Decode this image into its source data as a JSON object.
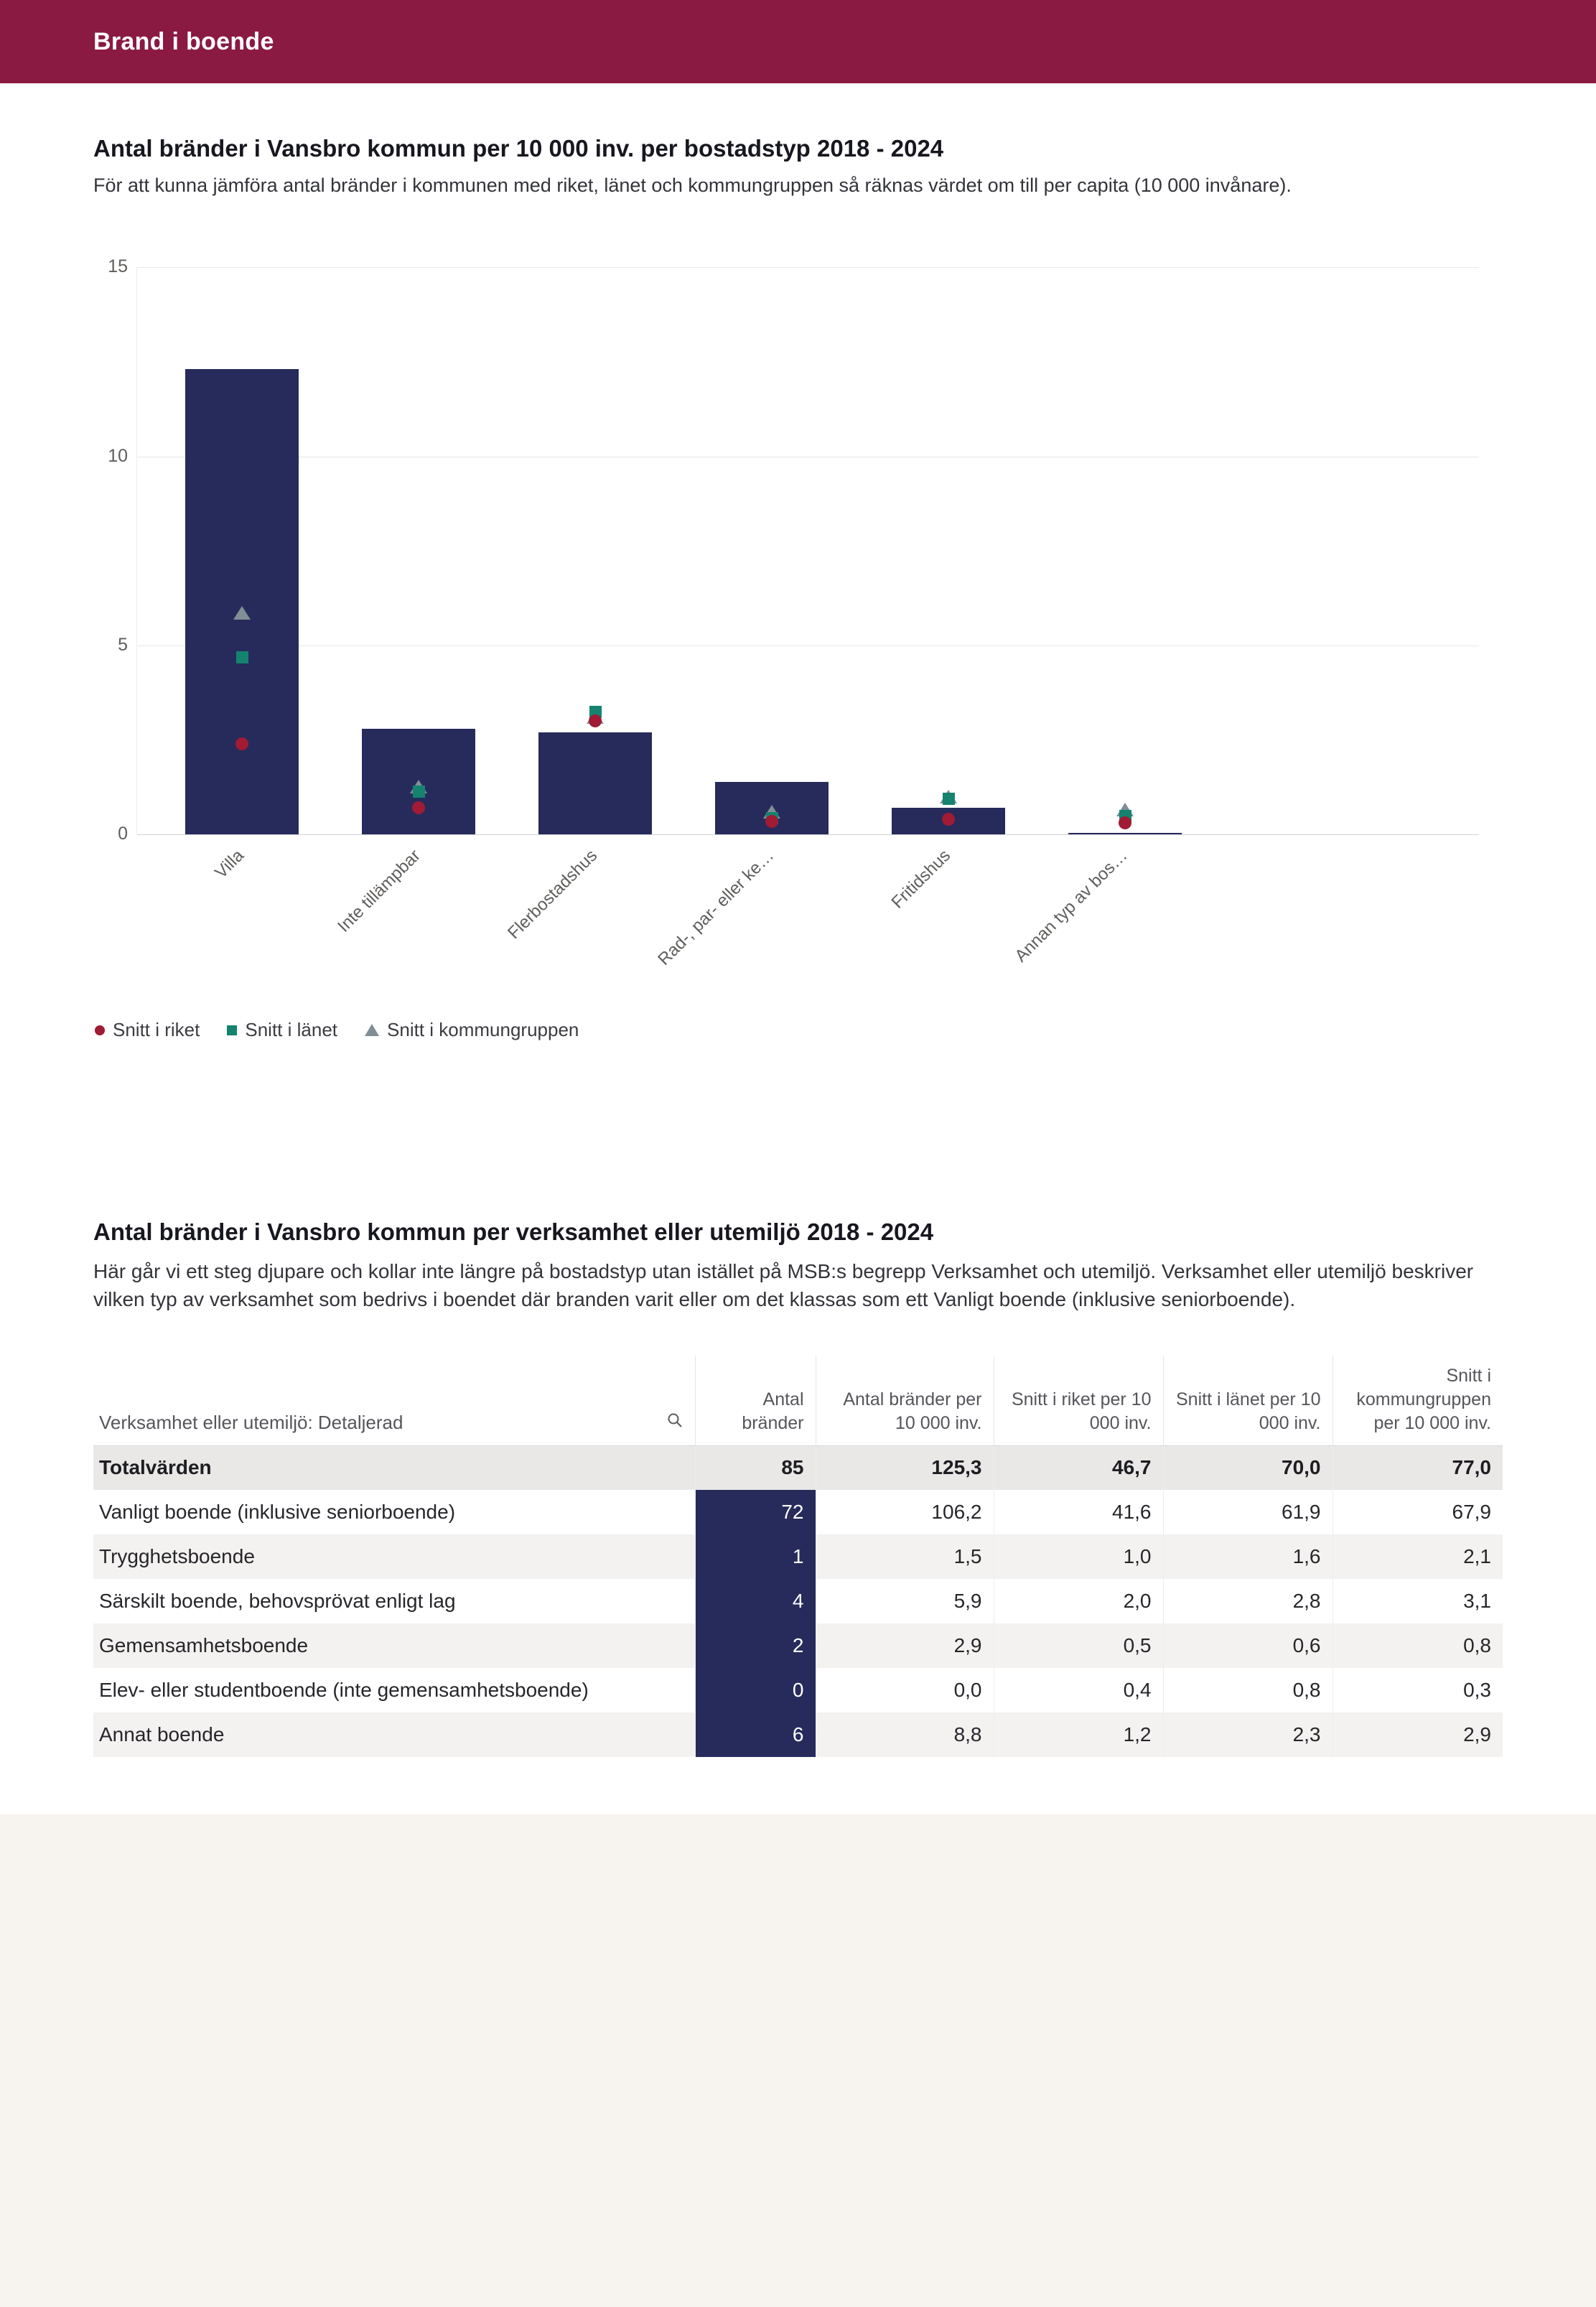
{
  "header": {
    "title": "Brand i boende",
    "bg": "#8a1a42"
  },
  "section1": {
    "title": "Antal bränder i Vansbro kommun per 10 000 inv. per bostadstyp 2018 - 2024",
    "subtitle": "För att kunna jämföra antal bränder i kommunen med riket, länet och kommungruppen så räknas värdet om till per capita (10 000 invånare)."
  },
  "chart_data": {
    "type": "bar",
    "title": "Antal bränder i Vansbro kommun per 10 000 inv. per bostadstyp 2018 - 2024",
    "categories": [
      "Villa",
      "Inte tillämpbar",
      "Flerbostadshus",
      "Rad-, par- eller ke…",
      "Fritidshus",
      "Annan typ av bos…"
    ],
    "bar_series": {
      "name": "Vansbro kommun",
      "values": [
        12.3,
        2.8,
        2.7,
        1.4,
        0.7,
        0.05
      ]
    },
    "marker_series": [
      {
        "name": "Snitt i riket",
        "shape": "circle",
        "color": "#a01b33",
        "values": [
          2.4,
          0.7,
          3.0,
          0.35,
          0.4,
          0.3
        ]
      },
      {
        "name": "Snitt i länet",
        "shape": "square",
        "color": "#15836f",
        "values": [
          4.7,
          1.15,
          3.25,
          0.45,
          0.95,
          0.5
        ]
      },
      {
        "name": "Snitt i kommungruppen",
        "shape": "triangle",
        "color": "#808e96",
        "values": [
          5.85,
          1.25,
          3.1,
          0.6,
          1.0,
          0.65
        ]
      }
    ],
    "ylim": [
      0,
      15
    ],
    "yticks": [
      0,
      5,
      10,
      15
    ],
    "bar_color": "#262b5c",
    "grid": true,
    "legend_position": "bottom-left"
  },
  "section2": {
    "title": "Antal bränder i Vansbro kommun per verksamhet eller utemiljö 2018 - 2024",
    "body": "Här går vi ett steg djupare och kollar inte längre på bostadstyp utan istället på MSB:s begrepp Verksamhet och utemiljö. Verksamhet eller utemiljö beskriver vilken typ av verksamhet som bedrivs i boendet där branden varit eller om det klassas som ett Vanligt boende (inklusive seniorboende)."
  },
  "table": {
    "columns": [
      "Verksamhet eller utemiljö: Detaljerad",
      "Antal bränder",
      "Antal bränder per 10 000 inv.",
      "Snitt i riket per 10 000 inv.",
      "Snitt i länet per 10 000 inv.",
      "Snitt i kommungruppen per 10 000 inv."
    ],
    "total_row": {
      "label": "Totalvärden",
      "values": [
        "85",
        "125,3",
        "46,7",
        "70,0",
        "77,0"
      ]
    },
    "rows": [
      {
        "label": "Vanligt boende (inklusive seniorboende)",
        "values": [
          "72",
          "106,2",
          "41,6",
          "61,9",
          "67,9"
        ]
      },
      {
        "label": "Trygghetsboende",
        "values": [
          "1",
          "1,5",
          "1,0",
          "1,6",
          "2,1"
        ]
      },
      {
        "label": "Särskilt boende, behovsprövat enligt lag",
        "values": [
          "4",
          "5,9",
          "2,0",
          "2,8",
          "3,1"
        ]
      },
      {
        "label": "Gemensamhetsboende",
        "values": [
          "2",
          "2,9",
          "0,5",
          "0,6",
          "0,8"
        ]
      },
      {
        "label": "Elev- eller studentboende (inte gemensamhetsboende)",
        "values": [
          "0",
          "0,0",
          "0,4",
          "0,8",
          "0,3"
        ]
      },
      {
        "label": "Annat boende",
        "values": [
          "6",
          "8,8",
          "1,2",
          "2,3",
          "2,9"
        ]
      }
    ]
  }
}
